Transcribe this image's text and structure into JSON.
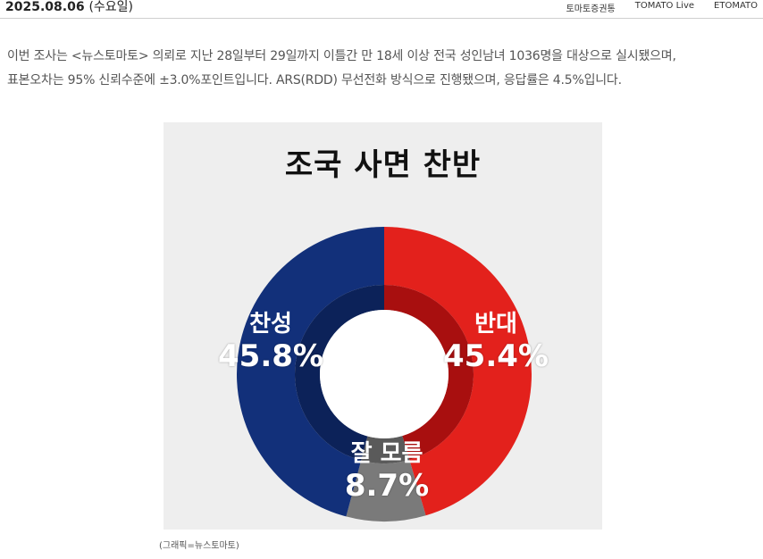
{
  "header": {
    "date": "2025.08.06",
    "weekday": "(수요일)",
    "nav": [
      "토마토증권통",
      "TOMATO Live",
      "ETOMATO"
    ]
  },
  "article": {
    "line1": "이번 조사는 <뉴스토마토> 의뢰로 지난 28일부터 29일까지 이틀간 만 18세 이상 전국 성인남녀 1036명을 대상으로 실시됐으며,",
    "line2": "표본오차는 95% 신뢰수준에 ±3.0%포인트입니다. ARS(RDD) 무선전화 방식으로 진행됐으며, 응답률은 4.5%입니다."
  },
  "chart_data": {
    "type": "pie",
    "title": "조국 사면 찬반",
    "series": [
      {
        "name": "반대",
        "value": 45.4,
        "label": "45.4%",
        "color": "#e3211c",
        "inner_color": "#a80f0f"
      },
      {
        "name": "잘 모름",
        "value": 8.7,
        "label": "8.7%",
        "color": "#7a7a7a",
        "inner_color": "#5a5a5a"
      },
      {
        "name": "찬성",
        "value": 45.8,
        "label": "45.8%",
        "color": "#12307a",
        "inner_color": "#0c2259"
      }
    ],
    "start": "top",
    "direction": "clockwise",
    "background": "#eeeeee"
  },
  "credit": "(그래픽=뉴스토마토)"
}
